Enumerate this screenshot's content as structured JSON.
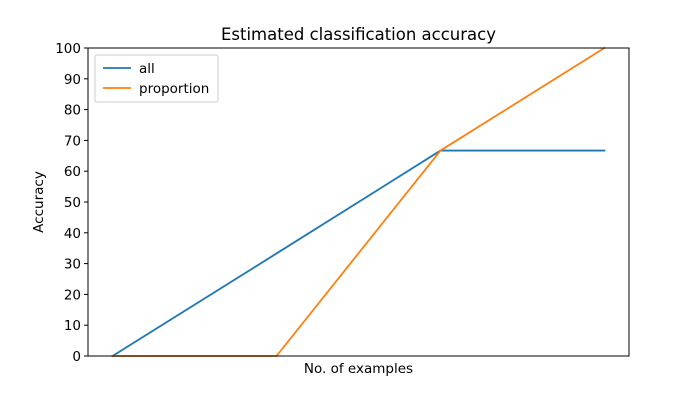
{
  "chart_data": {
    "type": "line",
    "title": "Estimated classification accuracy",
    "xlabel": "No. of examples",
    "ylabel": "Accuracy",
    "ylim": [
      0,
      100
    ],
    "yticks": [
      0,
      10,
      20,
      30,
      40,
      50,
      60,
      70,
      80,
      90,
      100
    ],
    "xticks": [],
    "x": [
      1,
      2,
      3,
      4
    ],
    "xlim": [
      0.85,
      4.15
    ],
    "grid": false,
    "legend_position": "top-left",
    "series": [
      {
        "name": "all",
        "color": "#1f77b4",
        "values": [
          0,
          33.3,
          66.7,
          66.7
        ]
      },
      {
        "name": "proportion",
        "color": "#ff7f0e",
        "values": [
          0,
          0,
          66.7,
          100
        ]
      }
    ]
  }
}
